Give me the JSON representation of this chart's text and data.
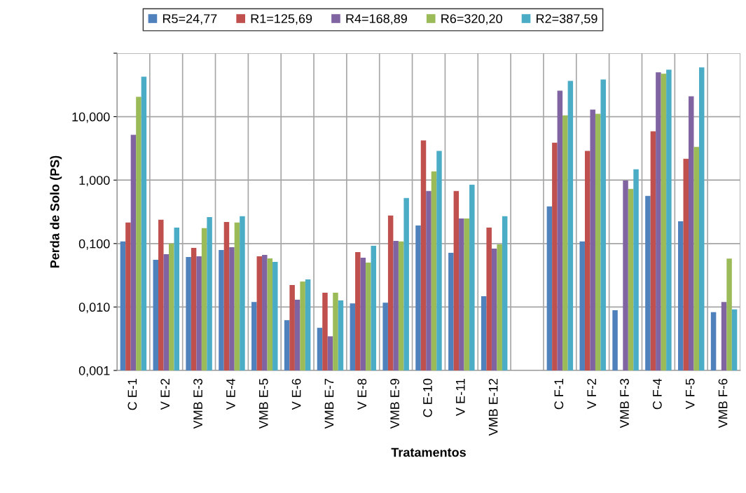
{
  "chart_data": {
    "type": "bar",
    "xlabel": "Tratamentos",
    "ylabel": "Perda de Solo (PS)",
    "log": true,
    "grid": true,
    "legend": "top",
    "categories": [
      "C E-1",
      "V E-2",
      "VMB E-3",
      "V E-4",
      "VMB E-5",
      "V E-6",
      "VMB E-7",
      "V E-8",
      "VMB E-9",
      "C E-10",
      "V E-11",
      "VMB E-12",
      null,
      "C F-1",
      "V F-2",
      "VMB F-3",
      "C F-4",
      "V F-5",
      "VMB F-6"
    ],
    "ylim": [
      0.001,
      100
    ],
    "yticks": [
      {
        "value": 0.001,
        "label": "0,001"
      },
      {
        "value": 0.01,
        "label": "0,010"
      },
      {
        "value": 0.1,
        "label": "0,100"
      },
      {
        "value": 1,
        "label": "1,000"
      },
      {
        "value": 10,
        "label": "10,000"
      },
      {
        "value": 100,
        "label": null
      }
    ],
    "series": [
      {
        "name": "R5=24,77",
        "color": "#4f81bd",
        "values": [
          0.108,
          0.0555,
          0.0614,
          0.079,
          0.012,
          0.0062,
          0.0047,
          0.0114,
          0.0117,
          0.193,
          0.0716,
          0.0148,
          null,
          0.385,
          0.108,
          0.0089,
          0.564,
          0.225,
          0.0083
        ]
      },
      {
        "name": "R1=125,69",
        "color": "#c0504d",
        "values": [
          0.214,
          0.237,
          0.0855,
          0.219,
          0.063,
          0.0222,
          0.0168,
          0.0735,
          0.276,
          4.22,
          0.673,
          0.179,
          null,
          3.9,
          2.88,
          null,
          5.87,
          2.17,
          null
        ]
      },
      {
        "name": "R4=168,89",
        "color": "#8064a2",
        "values": [
          5.17,
          0.068,
          0.063,
          0.0877,
          0.0663,
          0.013,
          0.00345,
          0.0599,
          0.11,
          0.673,
          0.249,
          0.0834,
          null,
          25.7,
          12.9,
          0.986,
          49.9,
          21.0,
          0.012
        ]
      },
      {
        "name": "R6=320,20",
        "color": "#9bbb59",
        "values": [
          20.5,
          0.1,
          0.175,
          0.214,
          0.0584,
          0.0252,
          0.0168,
          0.0501,
          0.108,
          1.37,
          0.249,
          0.0971,
          null,
          10.5,
          11.1,
          0.727,
          47.4,
          3.35,
          0.058
        ]
      },
      {
        "name": "R2=387,59",
        "color": "#4bacc6",
        "values": [
          42.8,
          0.179,
          0.262,
          0.269,
          0.0514,
          0.0272,
          0.0127,
          0.0923,
          0.522,
          2.88,
          0.847,
          0.269,
          null,
          36.7,
          38.6,
          1.48,
          55.2,
          59.6,
          0.0092
        ]
      }
    ]
  }
}
